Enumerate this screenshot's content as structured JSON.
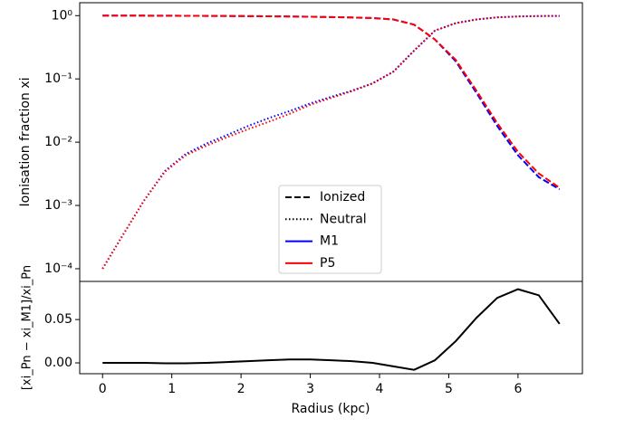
{
  "chart_data": [
    {
      "type": "line",
      "ylabel": "Ionisation fraction xi",
      "log_y": true,
      "x": [
        0,
        0.3,
        0.6,
        0.9,
        1.2,
        1.5,
        1.8,
        2.1,
        2.4,
        2.7,
        3.0,
        3.3,
        3.6,
        3.9,
        4.2,
        4.5,
        4.8,
        5.1,
        5.4,
        5.7,
        6.0,
        6.3,
        6.6
      ],
      "xlim": [
        -0.33,
        6.93
      ],
      "ylim": [
        6.3e-05,
        1.6
      ],
      "yticks": [
        {
          "value": 1,
          "label": "10⁰"
        },
        {
          "value": 0.1,
          "label": "10⁻¹"
        },
        {
          "value": 0.01,
          "label": "10⁻²"
        },
        {
          "value": 0.001,
          "label": "10⁻³"
        },
        {
          "value": 0.0001,
          "label": "10⁻⁴"
        }
      ],
      "series": [
        {
          "color": "#0000ff",
          "dash": "dotted",
          "values": [
            0.0001,
            0.00035,
            0.0012,
            0.0035,
            0.0065,
            0.0095,
            0.013,
            0.018,
            0.024,
            0.031,
            0.041,
            0.052,
            0.065,
            0.085,
            0.13,
            0.28,
            0.58,
            0.76,
            0.87,
            0.94,
            0.97,
            0.985,
            0.99
          ]
        },
        {
          "color": "#ff0000",
          "dash": "dotted",
          "values": [
            0.0001,
            0.00035,
            0.0012,
            0.0034,
            0.0062,
            0.0088,
            0.012,
            0.016,
            0.021,
            0.028,
            0.039,
            0.05,
            0.064,
            0.085,
            0.13,
            0.28,
            0.58,
            0.76,
            0.87,
            0.94,
            0.97,
            0.985,
            0.99
          ]
        },
        {
          "color": "#0000ff",
          "dash": "dashed",
          "values": [
            0.9999,
            0.9997,
            0.999,
            0.996,
            0.994,
            0.99,
            0.987,
            0.982,
            0.976,
            0.969,
            0.959,
            0.948,
            0.935,
            0.915,
            0.87,
            0.72,
            0.42,
            0.19,
            0.06,
            0.018,
            0.0062,
            0.0028,
            0.0018
          ]
        },
        {
          "color": "#ff0000",
          "dash": "dashed",
          "values": [
            0.9999,
            0.9997,
            0.999,
            0.996,
            0.994,
            0.99,
            0.987,
            0.982,
            0.976,
            0.969,
            0.959,
            0.948,
            0.935,
            0.915,
            0.87,
            0.72,
            0.42,
            0.2,
            0.065,
            0.02,
            0.007,
            0.0032,
            0.0019
          ]
        }
      ],
      "legend": [
        {
          "name": "Ionized",
          "color": "#000000",
          "dash": "dashed"
        },
        {
          "name": "Neutral",
          "color": "#000000",
          "dash": "dotted"
        },
        {
          "name": "M1",
          "color": "#0000ff",
          "dash": "solid"
        },
        {
          "name": "P5",
          "color": "#ff0000",
          "dash": "solid"
        }
      ]
    },
    {
      "type": "line",
      "ylabel": "[xi_Pn − xi_M1]/xi_Pn",
      "xlabel": "Radius (kpc)",
      "x": [
        0,
        0.3,
        0.6,
        0.9,
        1.2,
        1.5,
        1.8,
        2.1,
        2.4,
        2.7,
        3.0,
        3.3,
        3.6,
        3.9,
        4.2,
        4.5,
        4.8,
        5.1,
        5.4,
        5.7,
        6.0,
        6.3,
        6.6
      ],
      "xlim": [
        -0.33,
        6.93
      ],
      "xticks": [
        0,
        1,
        2,
        3,
        4,
        5,
        6
      ],
      "ylim": [
        -0.0125,
        0.094
      ],
      "yticks": [
        {
          "value": 0,
          "label": "0.00"
        },
        {
          "value": 0.05,
          "label": "0.05"
        }
      ],
      "series": [
        {
          "color": "#000000",
          "dash": "solid",
          "values": [
            0,
            0,
            0,
            -0.0005,
            -0.0005,
            0,
            0.001,
            0.002,
            0.003,
            0.004,
            0.004,
            0.003,
            0.002,
            0,
            -0.004,
            -0.008,
            0.003,
            0.025,
            0.052,
            0.075,
            0.085,
            0.078,
            0.045
          ]
        }
      ]
    }
  ]
}
